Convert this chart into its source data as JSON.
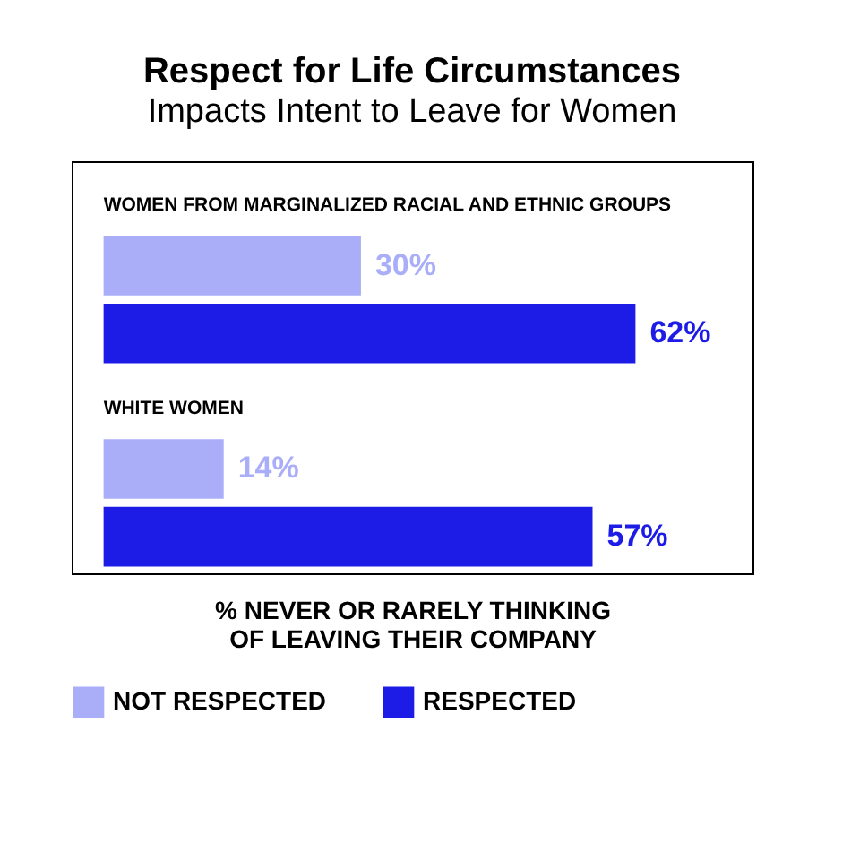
{
  "chart_data": {
    "type": "bar",
    "orientation": "horizontal",
    "title": "Respect for Life Circumstances",
    "subtitle": "Impacts Intent to Leave for Women",
    "categories": [
      "WOMEN FROM MARGINALIZED RACIAL AND ETHNIC GROUPS",
      "WHITE WOMEN"
    ],
    "series": [
      {
        "name": "NOT RESPECTED",
        "color": "#aaaef8",
        "values": [
          30,
          14
        ],
        "value_labels": [
          "30%",
          "14%"
        ]
      },
      {
        "name": "RESPECTED",
        "color": "#1c1ce6",
        "values": [
          62,
          57
        ],
        "value_labels": [
          "62%",
          "57%"
        ]
      }
    ],
    "xlabel": "% NEVER OR RARELY THINKING OF LEAVING THEIR COMPANY",
    "legend": "bottom",
    "grid": false
  }
}
